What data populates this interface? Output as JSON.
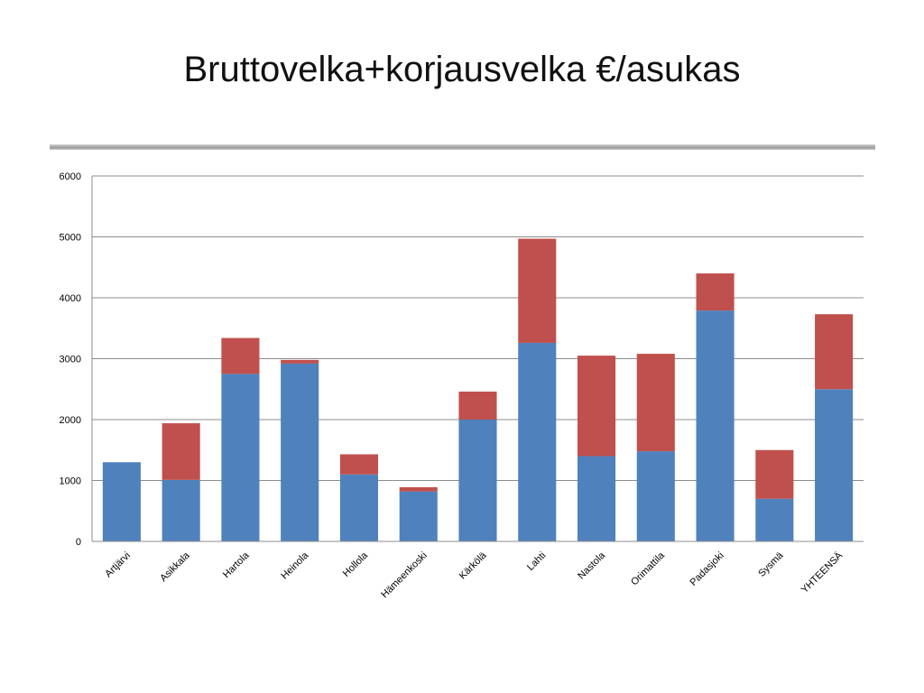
{
  "slide": {
    "title": "Bruttovelka+korjausvelka €/asukas"
  },
  "colors": {
    "series1": "#4F81BD",
    "series2": "#C0504D",
    "grid": "#8c8c8c",
    "rule": "#a6a6a6"
  },
  "chart_data": {
    "type": "bar",
    "stacked": true,
    "title": "",
    "xlabel": "",
    "ylabel": "",
    "ylim": [
      0,
      6000
    ],
    "yticks": [
      0,
      1000,
      2000,
      3000,
      4000,
      5000,
      6000
    ],
    "grid": true,
    "legend": "none",
    "categories": [
      "Artjärvi",
      "Asikkala",
      "Hartola",
      "Heinola",
      "Hollola",
      "Hämeenkoski",
      "Kärkölä",
      "Lahti",
      "Nastola",
      "Orimattila",
      "Padasjoki",
      "Sysmä",
      "YHTEENSÄ"
    ],
    "series": [
      {
        "values": [
          1300,
          1010,
          2750,
          2920,
          1100,
          820,
          2000,
          3260,
          1400,
          1480,
          3790,
          700,
          2500
        ]
      },
      {
        "values": [
          0,
          930,
          590,
          60,
          330,
          70,
          460,
          1710,
          1650,
          1600,
          610,
          800,
          1230
        ]
      }
    ]
  }
}
